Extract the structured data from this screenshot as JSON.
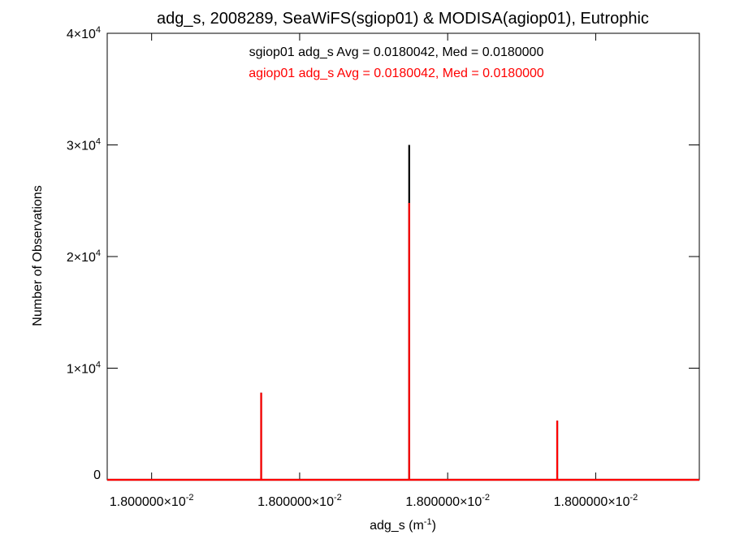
{
  "chart_data": {
    "type": "bar",
    "title": "adg_s, 2008289, SeaWiFS(sgiop01) & MODISA(agiop01), Eutrophic",
    "xlabel": {
      "base": "adg_s (m",
      "sup": "-1",
      "tail": ")"
    },
    "ylabel": "Number of Observations",
    "ylim": [
      0,
      40000
    ],
    "xlim": [
      -0.3,
      3.7
    ],
    "x_ticks": [
      {
        "value": 0,
        "mantissa": "1.800000",
        "times": "×10",
        "exp": "-2"
      },
      {
        "value": 1,
        "mantissa": "1.800000",
        "times": "×10",
        "exp": "-2"
      },
      {
        "value": 2,
        "mantissa": "1.800000",
        "times": "×10",
        "exp": "-2"
      },
      {
        "value": 3,
        "mantissa": "1.800000",
        "times": "×10",
        "exp": "-2"
      }
    ],
    "y_ticks": [
      {
        "value": 0,
        "mantissa": "0",
        "times": "",
        "exp": ""
      },
      {
        "value": 10000,
        "mantissa": "1",
        "times": "×10",
        "exp": "4"
      },
      {
        "value": 20000,
        "mantissa": "2",
        "times": "×10",
        "exp": "4"
      },
      {
        "value": 30000,
        "mantissa": "3",
        "times": "×10",
        "exp": "4"
      },
      {
        "value": 40000,
        "mantissa": "4",
        "times": "×10",
        "exp": "4"
      }
    ],
    "series": [
      {
        "name": "sgiop01",
        "color": "#000000",
        "annotation": "sgiop01 adg_s Avg = 0.0180042, Med = 0.0180000",
        "x": [
          0.74,
          1.74,
          2.74
        ],
        "values": [
          7800,
          30000,
          5300
        ]
      },
      {
        "name": "agiop01",
        "color": "#ff0000",
        "annotation": "agiop01 adg_s Avg = 0.0180042, Med = 0.0180000",
        "x": [
          0.74,
          1.74,
          2.74
        ],
        "values": [
          7800,
          24800,
          5300
        ]
      }
    ],
    "grid": false,
    "legend": "top-center"
  }
}
